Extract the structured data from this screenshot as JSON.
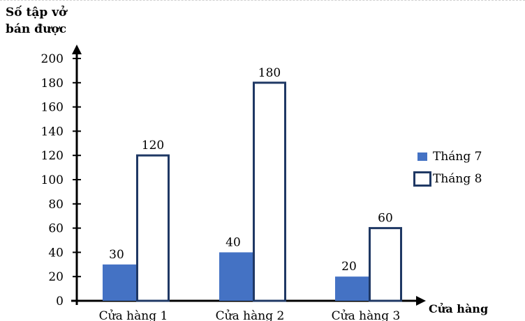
{
  "chart_data": {
    "type": "bar",
    "ylabel_lines": [
      "Số tập vở",
      "bán được"
    ],
    "xlabel": "Cửa hàng",
    "categories": [
      "Cửa hàng 1",
      "Cửa hàng 2",
      "Cửa hàng 3"
    ],
    "series": [
      {
        "name": "Tháng 7",
        "values": [
          30,
          40,
          20
        ],
        "color": "#4472c4"
      },
      {
        "name": "Tháng 8",
        "values": [
          120,
          180,
          60
        ],
        "color": "#ffffff",
        "border": "#1f3864"
      }
    ],
    "ylim": [
      0,
      200
    ],
    "yticks": [
      0,
      20,
      40,
      60,
      80,
      100,
      120,
      140,
      160,
      180,
      200
    ],
    "grid": false,
    "legend": "right"
  }
}
